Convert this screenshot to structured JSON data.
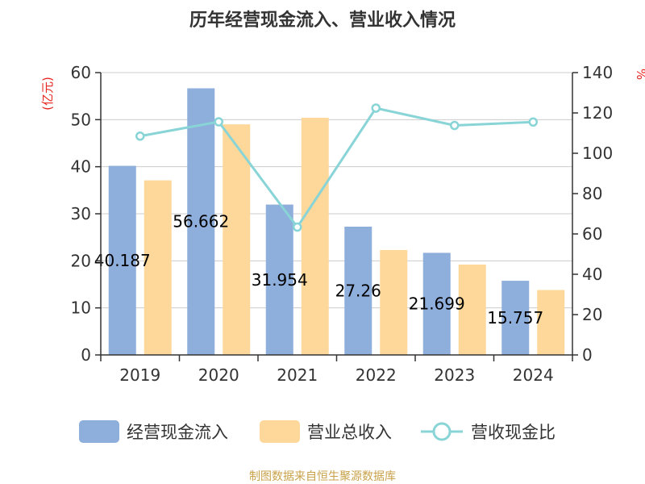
{
  "chart_data": {
    "type": "bar",
    "title": "历年经营现金流入、营业收入情况",
    "categories": [
      "2019",
      "2020",
      "2021",
      "2022",
      "2023",
      "2024"
    ],
    "series": [
      {
        "name": "经营现金流入",
        "kind": "bar",
        "axis": "left",
        "color": "#8eaedb",
        "values": [
          40.187,
          56.662,
          31.954,
          27.26,
          21.699,
          15.757
        ]
      },
      {
        "name": "营业总收入",
        "kind": "bar",
        "axis": "left",
        "color": "#fdd89a",
        "values": [
          37.1,
          49.0,
          50.4,
          22.3,
          19.2,
          13.8
        ]
      },
      {
        "name": "营收现金比",
        "kind": "line",
        "axis": "right",
        "color": "#88d4d6",
        "values": [
          108.5,
          115.6,
          63.4,
          122.4,
          113.8,
          115.5
        ]
      }
    ],
    "data_labels": [
      "40.187",
      "56.662",
      "31.954",
      "27.26",
      "21.699",
      "15.757"
    ],
    "y_left": {
      "unit": "(亿元)",
      "min": 0,
      "max": 60,
      "ticks": [
        0,
        10,
        20,
        30,
        40,
        50,
        60
      ]
    },
    "y_right": {
      "unit": "%",
      "min": 0,
      "max": 140,
      "ticks": [
        0,
        20,
        40,
        60,
        80,
        100,
        120,
        140
      ]
    },
    "grid": true,
    "legend_position": "bottom",
    "footer": "制图数据来自恒生聚源数据库"
  }
}
